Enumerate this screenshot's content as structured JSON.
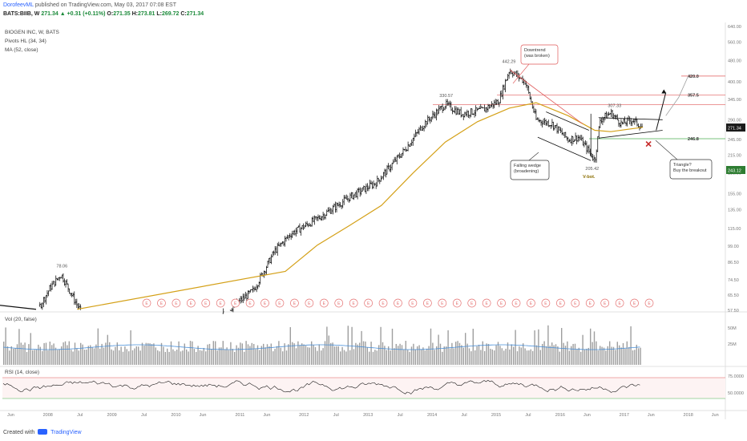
{
  "header": {
    "author": "DorofeevML",
    "publish_text": "published on TradingView.com, May 03, 2017 07:08 EST",
    "symbol": "BATS:BIIB, W",
    "last": "271.34",
    "change": "+0.31 (+0.11%)",
    "open_label": "O:",
    "open": "271.35",
    "high_label": "H:",
    "high": "273.81",
    "low_label": "L:",
    "low": "269.72",
    "close_label": "C:",
    "close": "271.34"
  },
  "legend": {
    "title": "BIOGEN INC, W, BATS",
    "pivots": "Pivots HL (34, 34)",
    "ma": "MA (52, close)",
    "vol": "Vol (20, false)",
    "rsi": "RSI (14, close)"
  },
  "footer": {
    "created": "Created with",
    "brand": "TradingView"
  },
  "colors": {
    "price_bars": "#1a1a1a",
    "ma": "#d4a017",
    "volume": "#9e9e9e",
    "volume_ma": "#4a90d9",
    "red_line": "#e05a5a",
    "green_line": "#4caf50",
    "rsi_line": "#1a1a1a",
    "earnings": "#e57373"
  },
  "chart_data": [
    {
      "type": "candlestick",
      "panel": "price",
      "y_scale": "log",
      "ylim": [
        57.5,
        640
      ],
      "y_ticks": [
        "640.00",
        "560.00",
        "480.00",
        "400.00",
        "345.00",
        "290.00",
        "245.00",
        "215.00",
        "185.00",
        "155.00",
        "135.00",
        "115.00",
        "99.00",
        "86.50",
        "74.50",
        "65.50",
        "57.50"
      ],
      "x_ticks": [
        "Jun",
        "2008",
        "Jul",
        "2009",
        "Jul",
        "2010",
        "Jun",
        "2011",
        "Jun",
        "2012",
        "Jul",
        "2013",
        "Jul",
        "2014",
        "Jul",
        "2015",
        "Jul",
        "2016",
        "Jun",
        "2017",
        "Jun",
        "2018",
        "Jun"
      ],
      "price_path": [
        {
          "date": "2007-05",
          "price": 47
        },
        {
          "date": "2007-10",
          "price": 55
        },
        {
          "date": "2008-01",
          "price": 70
        },
        {
          "date": "2008-03",
          "price": 78.06
        },
        {
          "date": "2008-06",
          "price": 60
        },
        {
          "date": "2008-10",
          "price": 45
        },
        {
          "date": "2009-03",
          "price": 48
        },
        {
          "date": "2009-09",
          "price": 50
        },
        {
          "date": "2010-05",
          "price": 48
        },
        {
          "date": "2010-10",
          "price": 57
        },
        {
          "date": "2011-03",
          "price": 68
        },
        {
          "date": "2011-07",
          "price": 95
        },
        {
          "date": "2011-10",
          "price": 110
        },
        {
          "date": "2012-03",
          "price": 125
        },
        {
          "date": "2012-09",
          "price": 150
        },
        {
          "date": "2013-02",
          "price": 170
        },
        {
          "date": "2013-07",
          "price": 220
        },
        {
          "date": "2013-11",
          "price": 280
        },
        {
          "date": "2014-03",
          "price": 330.57
        },
        {
          "date": "2014-06",
          "price": 305
        },
        {
          "date": "2014-10",
          "price": 315
        },
        {
          "date": "2015-01",
          "price": 340
        },
        {
          "date": "2015-03",
          "price": 442.29
        },
        {
          "date": "2015-06",
          "price": 400
        },
        {
          "date": "2015-08",
          "price": 290
        },
        {
          "date": "2015-11",
          "price": 280
        },
        {
          "date": "2016-02",
          "price": 245
        },
        {
          "date": "2016-04",
          "price": 250
        },
        {
          "date": "2016-06",
          "price": 220
        },
        {
          "date": "2016-07",
          "price": 205.42
        },
        {
          "date": "2016-08",
          "price": 290
        },
        {
          "date": "2016-10",
          "price": 307.33
        },
        {
          "date": "2016-12",
          "price": 280
        },
        {
          "date": "2017-02",
          "price": 290
        },
        {
          "date": "2017-04",
          "price": 271.34
        }
      ],
      "ma_52_path": [
        {
          "date": "2008-01",
          "price": 52
        },
        {
          "date": "2008-06",
          "price": 58
        },
        {
          "date": "2009-01",
          "price": 52
        },
        {
          "date": "2010-01",
          "price": 48
        },
        {
          "date": "2011-01",
          "price": 54
        },
        {
          "date": "2011-09",
          "price": 80
        },
        {
          "date": "2012-03",
          "price": 100
        },
        {
          "date": "2012-09",
          "price": 118
        },
        {
          "date": "2013-03",
          "price": 140
        },
        {
          "date": "2013-09",
          "price": 185
        },
        {
          "date": "2014-03",
          "price": 240
        },
        {
          "date": "2014-09",
          "price": 285
        },
        {
          "date": "2015-03",
          "price": 320
        },
        {
          "date": "2015-08",
          "price": 335
        },
        {
          "date": "2016-02",
          "price": 300
        },
        {
          "date": "2016-07",
          "price": 265
        },
        {
          "date": "2016-10",
          "price": 262
        },
        {
          "date": "2017-04",
          "price": 272
        }
      ],
      "horizontal_levels": [
        {
          "price": 420,
          "label": "420.0",
          "color": "red"
        },
        {
          "price": 357.5,
          "label": "357.5",
          "color": "red"
        },
        {
          "price": 246.8,
          "label": "246.8",
          "color": "green"
        }
      ],
      "pivot_labels": [
        "78.06",
        "330.57",
        "442.29",
        "307.33",
        "205.42"
      ],
      "annotations": {
        "downtrend": "Downtrend\n(was broken)",
        "wedge": "Falling wedge\n(broadening)",
        "triangle": "Triangle?\nBuy the breakout",
        "vbot": "V-bot."
      },
      "price_badges": [
        {
          "value": "271.34",
          "background": "#1a1a1a"
        },
        {
          "value": "243.12",
          "background": "#2e7d32"
        }
      ],
      "earnings_marker": "E",
      "earnings_count": 35
    },
    {
      "type": "bar",
      "panel": "volume",
      "name": "Vol (20, false)",
      "y_ticks": [
        "50M",
        "25M"
      ]
    },
    {
      "type": "line",
      "panel": "rsi",
      "name": "RSI (14, close)",
      "y_ticks": [
        "75.0000",
        "50.0000"
      ],
      "levels": [
        70,
        30
      ],
      "last": 50
    }
  ]
}
